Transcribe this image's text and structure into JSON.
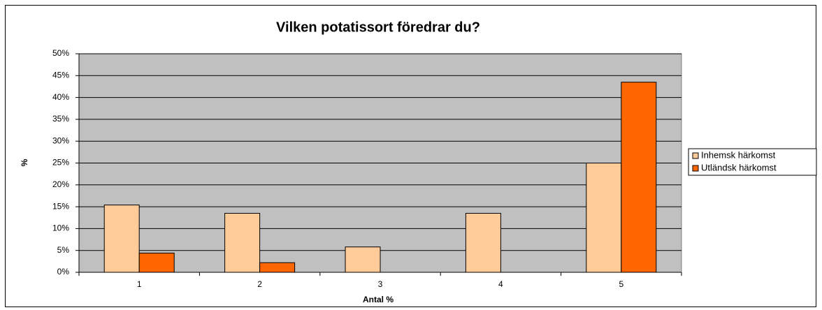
{
  "chart_data": {
    "type": "bar",
    "title": "Vilken potatissort föredrar du?",
    "x_label": "Antal %",
    "y_label": "%",
    "categories": [
      "1",
      "2",
      "3",
      "4",
      "5"
    ],
    "series": [
      {
        "name": "Inhemsk härkomst",
        "color": "#ffcc99",
        "values": [
          15.4,
          13.5,
          5.8,
          13.5,
          25
        ]
      },
      {
        "name": "Utländsk härkomst",
        "color": "#ff6600",
        "values": [
          4.4,
          2.2,
          0,
          0,
          43.5
        ]
      }
    ],
    "ylim": [
      0,
      50
    ],
    "yticks": [
      {
        "value": 0,
        "label": "0%"
      },
      {
        "value": 5,
        "label": "5%"
      },
      {
        "value": 10,
        "label": "10%"
      },
      {
        "value": 15,
        "label": "15%"
      },
      {
        "value": 20,
        "label": "20%"
      },
      {
        "value": 25,
        "label": "25%"
      },
      {
        "value": 30,
        "label": "30%"
      },
      {
        "value": 35,
        "label": "35%"
      },
      {
        "value": 40,
        "label": "40%"
      },
      {
        "value": 45,
        "label": "45%"
      },
      {
        "value": 50,
        "label": "50%"
      }
    ],
    "grid": true,
    "legend": "right",
    "plot_background": "#c0c0c0"
  }
}
